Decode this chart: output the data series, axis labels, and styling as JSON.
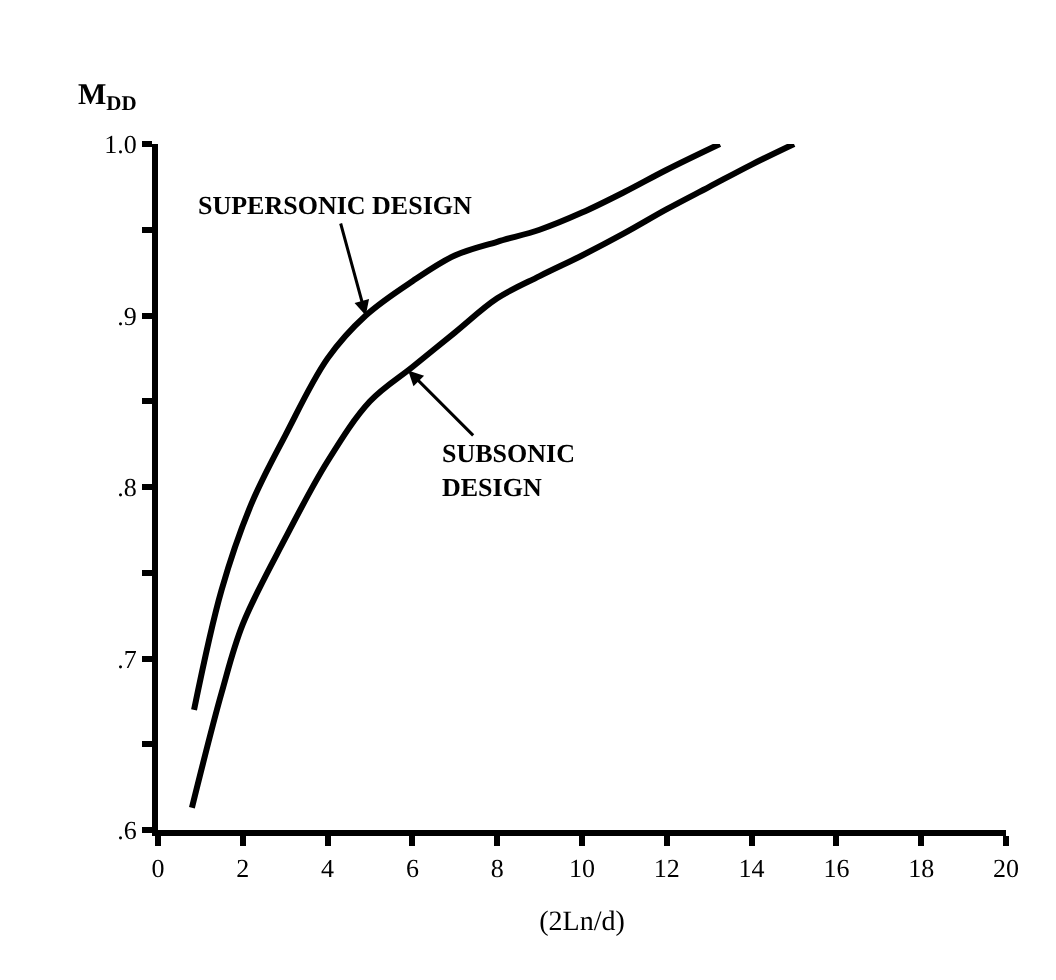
{
  "chart_data": {
    "type": "line",
    "ylabel": "M$_{DD}$",
    "xlabel": "(2Ln/d)",
    "xlim": [
      0,
      20
    ],
    "xticks": [
      0,
      2,
      4,
      6,
      8,
      10,
      12,
      14,
      16,
      18,
      20
    ],
    "ylim": [
      0.6,
      1.0
    ],
    "yticks": [
      {
        "value": 0.6,
        "label": ".6"
      },
      {
        "value": 0.65,
        "label": null
      },
      {
        "value": 0.7,
        "label": ".7"
      },
      {
        "value": 0.75,
        "label": null
      },
      {
        "value": 0.8,
        "label": ".8"
      },
      {
        "value": 0.85,
        "label": null
      },
      {
        "value": 0.9,
        "label": ".9"
      },
      {
        "value": 0.95,
        "label": null
      },
      {
        "value": 1.0,
        "label": "1.0"
      }
    ],
    "marker": "none",
    "line_style": "solid",
    "series": [
      {
        "color": "#000000",
        "x": [
          0.85,
          1.5,
          2.2,
          3,
          4,
          4.9,
          6,
          7,
          8,
          9,
          10,
          11,
          12,
          13.25
        ],
        "values": [
          0.67,
          0.74,
          0.79,
          0.83,
          0.875,
          0.9,
          0.92,
          0.935,
          0.943,
          0.95,
          0.96,
          0.972,
          0.985,
          1.0
        ]
      },
      {
        "color": "#000000",
        "x": [
          0.8,
          1.5,
          2,
          3,
          4,
          5,
          6,
          7,
          8,
          9,
          10,
          11,
          12,
          13,
          14,
          15
        ],
        "values": [
          0.613,
          0.68,
          0.72,
          0.77,
          0.815,
          0.85,
          0.87,
          0.89,
          0.91,
          0.923,
          0.935,
          0.948,
          0.962,
          0.975,
          0.988,
          1.0
        ]
      }
    ],
    "annotations": [
      {
        "text": "SUPERSONIC DESIGN",
        "x": 4.9,
        "y": 0.9
      },
      {
        "text": "SUBSONIC\nDESIGN",
        "x": 5.9,
        "y": 0.868
      }
    ]
  }
}
